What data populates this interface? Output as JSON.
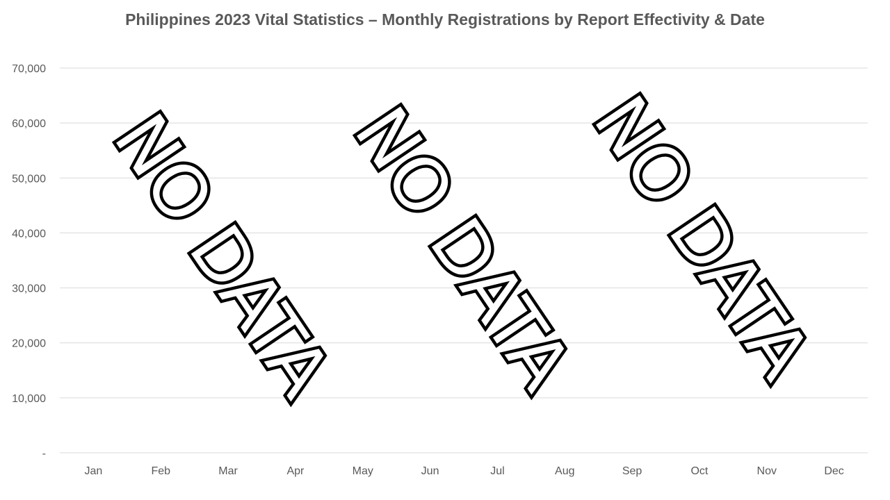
{
  "chart_data": {
    "type": "line",
    "title": "Philippines 2023 Vital Statistics – Monthly Registrations by Report Effectivity & Date",
    "xlabel": "",
    "ylabel": "",
    "categories": [
      "Jan",
      "Feb",
      "Mar",
      "Apr",
      "May",
      "Jun",
      "Jul",
      "Aug",
      "Sep",
      "Oct",
      "Nov",
      "Dec"
    ],
    "y_ticks": [
      {
        "value": 0,
        "label": "-"
      },
      {
        "value": 10000,
        "label": "10,000"
      },
      {
        "value": 20000,
        "label": "20,000"
      },
      {
        "value": 30000,
        "label": "30,000"
      },
      {
        "value": 40000,
        "label": "40,000"
      },
      {
        "value": 50000,
        "label": "50,000"
      },
      {
        "value": 60000,
        "label": "60,000"
      },
      {
        "value": 70000,
        "label": "70,000"
      }
    ],
    "ylim": [
      0,
      70000
    ],
    "grid": true,
    "legend": "none",
    "series": [],
    "annotations": [
      "NO DATA",
      "NO DATA",
      "NO DATA"
    ]
  }
}
